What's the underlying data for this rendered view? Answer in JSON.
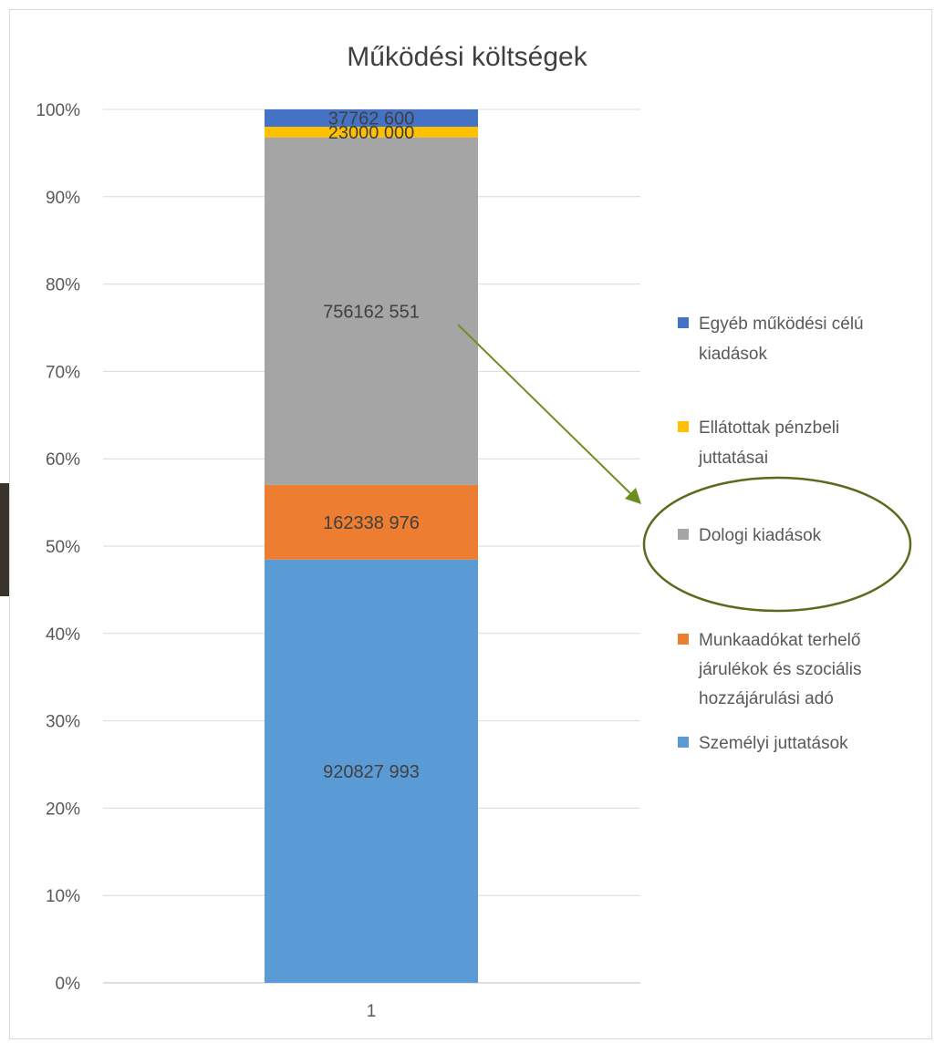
{
  "chart_data": {
    "type": "bar",
    "stacked": "percent",
    "title": "Működési költségek",
    "categories": [
      "1"
    ],
    "yticks": [
      "0%",
      "10%",
      "20%",
      "30%",
      "40%",
      "50%",
      "60%",
      "70%",
      "80%",
      "90%",
      "100%"
    ],
    "ylim": [
      0,
      100
    ],
    "grid": true,
    "legend_position": "right",
    "series": [
      {
        "name": "Személyi  juttatások",
        "values": [
          920827993
        ],
        "label": "920827 993",
        "color": "#5b9bd5"
      },
      {
        "name": "Munkaadókat terhelő járulékok és szociális hozzájárulási adó",
        "values": [
          162338976
        ],
        "label": "162338 976",
        "color": "#ed7d31"
      },
      {
        "name": "Dologi  kiadások",
        "values": [
          756162551
        ],
        "label": "756162 551",
        "color": "#a5a5a5"
      },
      {
        "name": "Ellátottak pénzbeli juttatásai",
        "values": [
          23000000
        ],
        "label": "23000 000",
        "color": "#ffc000"
      },
      {
        "name": "Egyéb működési célú kiadások",
        "values": [
          37762600
        ],
        "label": "37762 600",
        "color": "#4472c4"
      }
    ],
    "legend_lines": {
      "egyeb": [
        "Egyéb működési célú",
        "kiadások"
      ],
      "ellatottak": [
        "Ellátottak pénzbeli",
        "juttatásai"
      ],
      "dologi": [
        "Dologi  kiadások"
      ],
      "munkaado": [
        "Munkaadókat terhelő",
        "járulékok és szociális",
        "hozzájárulási adó"
      ],
      "szemelyi": [
        "Személyi  juttatások"
      ]
    },
    "annotation": {
      "type": "arrow-and-ellipse",
      "highlights": "Dologi  kiadások",
      "color": "#6b8e23",
      "ellipse_color": "#5a6b1e"
    }
  }
}
